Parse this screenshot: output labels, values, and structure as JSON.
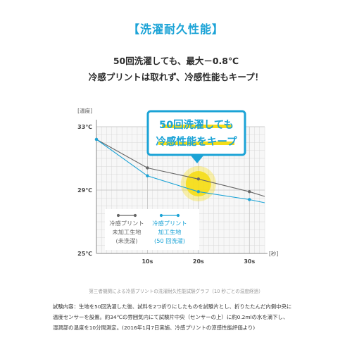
{
  "heading": {
    "text": "【洗濯耐久性能】",
    "color": "#1ba3d6"
  },
  "lead": {
    "line1": "50回洗濯しても、最大－0.8℃",
    "line2": "冷感プリントは取れず、冷感性能もキープ！"
  },
  "callout": {
    "line1": "50回洗濯しても",
    "line2": "冷感性能をキープ",
    "color": "#1ba3d6"
  },
  "chart_data": {
    "type": "line",
    "ylabel": "[温度]",
    "xlabel": "[秒]",
    "x": [
      0,
      10,
      20,
      30
    ],
    "ylim": [
      25,
      33
    ],
    "xlim": [
      0,
      33
    ],
    "yticks": [
      {
        "v": 25,
        "label": "25℃"
      },
      {
        "v": 29,
        "label": "29℃"
      },
      {
        "v": 33,
        "label": "33℃"
      }
    ],
    "xticks": [
      {
        "v": 10,
        "label": "10s"
      },
      {
        "v": 20,
        "label": "20s"
      },
      {
        "v": 30,
        "label": "30s"
      }
    ],
    "grid": true,
    "series": [
      {
        "key": "untreated",
        "name": "冷感プリント\n未加工生地\n(未洗濯)",
        "color": "#666666",
        "points": [
          [
            0,
            32.2
          ],
          [
            10,
            30.4
          ],
          [
            20,
            29.7
          ],
          [
            30,
            28.9
          ],
          [
            33,
            28.6
          ]
        ]
      },
      {
        "key": "washed",
        "name": "冷感プリント\n加工生地\n(50 回洗濯)",
        "color": "#1ba3d6",
        "points": [
          [
            0,
            32.2
          ],
          [
            10,
            29.9
          ],
          [
            20,
            28.9
          ],
          [
            30,
            28.4
          ],
          [
            33,
            28.2
          ]
        ]
      }
    ],
    "highlight": {
      "x": 20,
      "y": 29.4,
      "color": "#f5dd16"
    }
  },
  "caption": "第三者機関による冷感プリントの洗濯耐久性能試験グラフ（10 秒ごとの温度経過）",
  "notes": [
    "試験内容：生地を50回洗濯した後、試料を2つ折りにしたものを試験片とし、折りたたんだ内側中央に",
    "温度センサーを設置。約34℃の雰囲気内にて試験片中央（センサーの上）に約0.2mlの水を滴下し、",
    "湿潤部の温度を10分間測定。(2016年1月7日実施、冷感プリントの涼感性能評価より)"
  ]
}
